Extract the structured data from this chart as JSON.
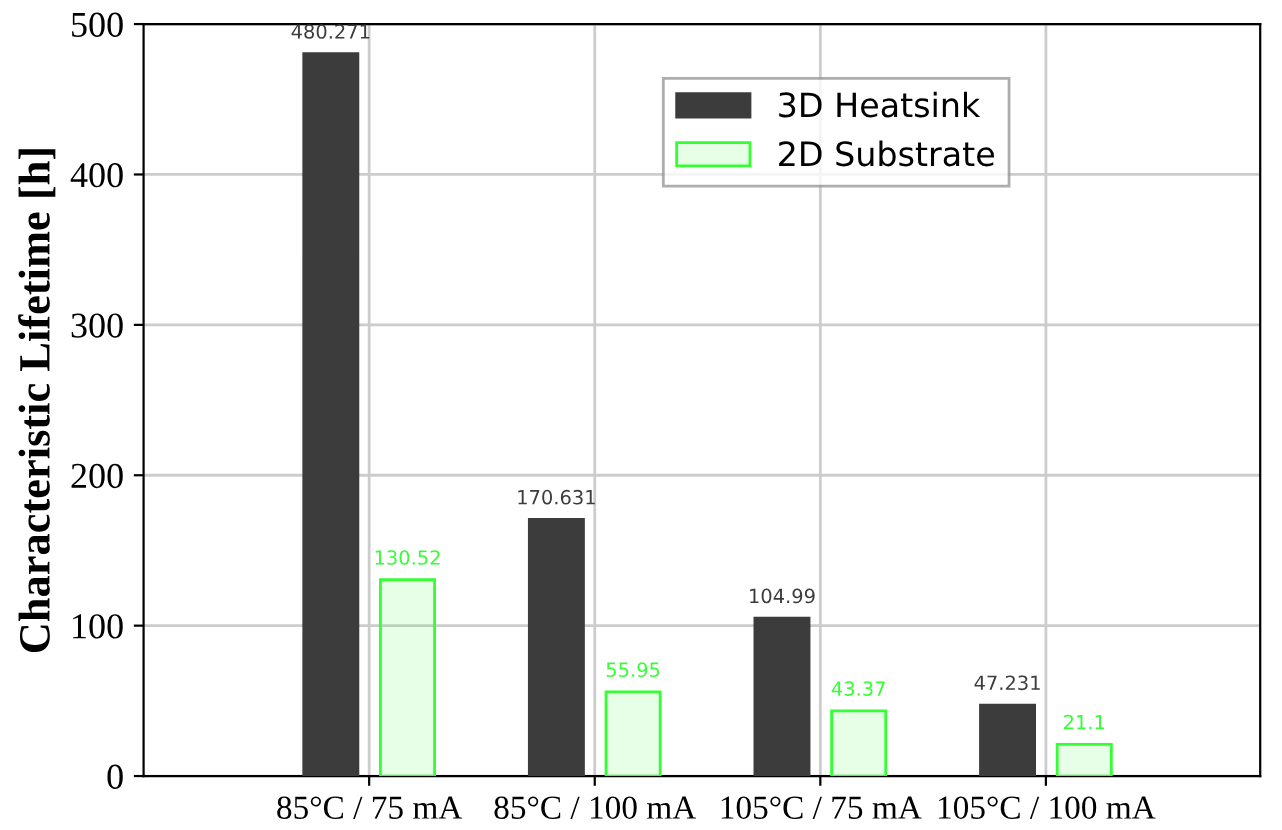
{
  "chart_data": {
    "type": "bar",
    "ylabel": "Characteristic Lifetime [h]",
    "categories": [
      "85°C / 75 mA",
      "85°C / 100 mA",
      "105°C / 75 mA",
      "105°C / 100 mA"
    ],
    "series": [
      {
        "name": "3D Heatsink",
        "color": "#3c3c3c",
        "values": [
          480.271,
          170.631,
          104.99,
          47.231
        ]
      },
      {
        "name": "2D Substrate",
        "color": "#33ff33",
        "values": [
          130.52,
          55.95,
          43.37,
          21.1
        ]
      }
    ],
    "ylim": [
      0,
      500
    ],
    "yticks": [
      0,
      100,
      200,
      300,
      400,
      500
    ],
    "grid": true,
    "legend": "top right",
    "data_labels": true
  }
}
